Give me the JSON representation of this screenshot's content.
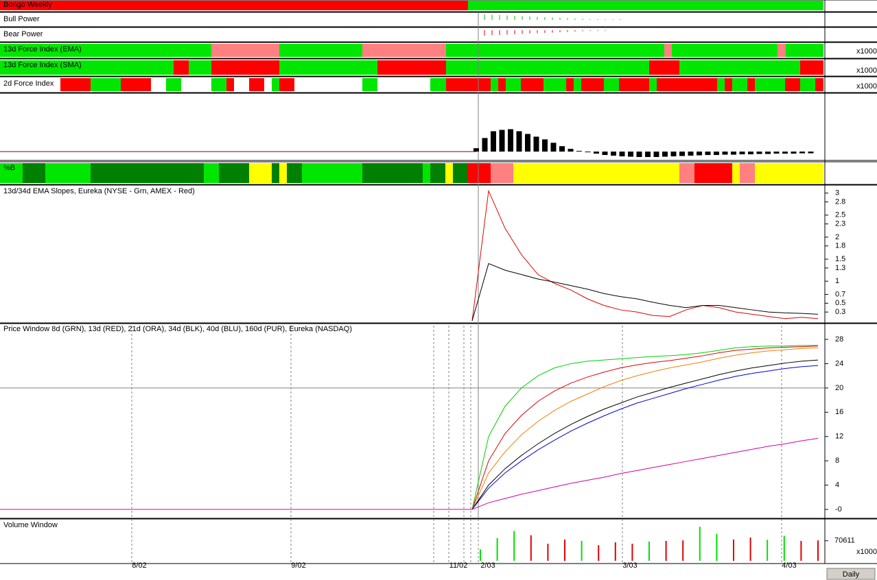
{
  "panels": {
    "bongo": "Bongo Weekly",
    "bull": "Bull Power",
    "bear": "Bear Power",
    "force_ema": "13d Force Index (EMA)",
    "force_sma": "13d Force Index (SMA)",
    "force_2d": "2d Force Index",
    "pctb": "%B"
  },
  "multiplier": "x1000",
  "dates": [
    "8/02",
    "9/02",
    "11/02",
    "2/03",
    "3/03",
    "4/03"
  ],
  "timeframe": "Daily",
  "chart_data": [
    {
      "type": "line",
      "title": "13d/34d EMA Slopes, Eureka (NYSE - Grn, AMEX - Red)",
      "ylim": [
        0.1,
        3.15
      ],
      "yticks": [
        0.3,
        0.5,
        0.7,
        1.0,
        1.3,
        1.5,
        1.8,
        2.0,
        2.3,
        2.5,
        2.8,
        3.0
      ],
      "series": [
        {
          "color": "#e00000",
          "values": [
            0.1,
            3.05,
            2.2,
            1.6,
            1.15,
            0.95,
            0.8,
            0.6,
            0.45,
            0.35,
            0.3,
            0.22,
            0.2,
            0.35,
            0.45,
            0.4,
            0.3,
            0.25,
            0.2,
            0.15,
            0.18,
            0.15
          ]
        },
        {
          "color": "#000000",
          "values": [
            0.1,
            1.4,
            1.25,
            1.15,
            1.05,
            0.98,
            0.9,
            0.82,
            0.72,
            0.65,
            0.6,
            0.52,
            0.45,
            0.4,
            0.45,
            0.45,
            0.4,
            0.35,
            0.3,
            0.28,
            0.27,
            0.25
          ]
        }
      ]
    },
    {
      "type": "line",
      "title": "Price Window 8d (GRN), 13d (RED), 21d (ORA), 34d (BLK), 40d (BLU), 160d (PUR), Eureka (NASDAQ)",
      "ylim": [
        -1.35,
        30.26
      ],
      "yticks": [
        {
          "value": 0,
          "label": "-0"
        },
        4,
        8,
        12,
        16,
        20,
        24,
        28
      ],
      "series": [
        {
          "color": "#00d000",
          "values": [
            0,
            12,
            17,
            20,
            22,
            23.3,
            24,
            24.4,
            24.6,
            24.8,
            25,
            25.2,
            25.3,
            25.5,
            25.8,
            26.2,
            26.6,
            26.8,
            26.9,
            26.9,
            27,
            27
          ]
        },
        {
          "color": "#e00000",
          "values": [
            0,
            8,
            12.5,
            15.5,
            17.8,
            19.5,
            20.8,
            21.8,
            22.6,
            23.3,
            23.8,
            24.2,
            24.5,
            24.9,
            25.3,
            25.8,
            26.2,
            26.4,
            26.6,
            26.7,
            26.8,
            26.9
          ]
        },
        {
          "color": "#f08000",
          "values": [
            0,
            6,
            9.5,
            12.3,
            14.5,
            16.3,
            17.8,
            19,
            20.2,
            21.2,
            22,
            22.7,
            23.3,
            23.8,
            24.3,
            24.9,
            25.4,
            25.8,
            26.1,
            26.3,
            26.5,
            26.6
          ]
        },
        {
          "color": "#000000",
          "values": [
            0,
            4,
            6.7,
            8.9,
            10.8,
            12.5,
            14,
            15.3,
            16.5,
            17.5,
            18.5,
            19.3,
            20.1,
            20.8,
            21.5,
            22.2,
            22.8,
            23.3,
            23.7,
            24.1,
            24.4,
            24.6
          ]
        },
        {
          "color": "#0000e0",
          "values": [
            0,
            3.5,
            6,
            8,
            9.8,
            11.4,
            12.9,
            14.2,
            15.4,
            16.5,
            17.5,
            18.3,
            19.1,
            19.9,
            20.6,
            21.3,
            21.9,
            22.4,
            22.8,
            23.2,
            23.5,
            23.7
          ]
        },
        {
          "color": "#d000a0",
          "values": [
            0,
            1.1,
            1.8,
            2.5,
            3.1,
            3.7,
            4.3,
            4.8,
            5.3,
            5.9,
            6.4,
            6.9,
            7.4,
            7.9,
            8.4,
            8.9,
            9.4,
            9.9,
            10.4,
            10.8,
            11.3,
            11.7
          ]
        }
      ]
    },
    {
      "type": "bar",
      "title": "Volume Window",
      "ylim": [
        0,
        140000
      ],
      "yticks": [
        70611
      ],
      "values": [
        40000,
        80000,
        105000,
        90000,
        60000,
        75000,
        70000,
        55000,
        65000,
        60000,
        68000,
        70000,
        72000,
        120000,
        95000,
        75000,
        82000,
        74000,
        88000,
        70000,
        72000
      ],
      "colors": [
        "#00e000",
        "#00e000",
        "#00e000",
        "#e00000",
        "#e00000",
        "#e00000",
        "#00e000",
        "#e00000",
        "#e00000",
        "#e00000",
        "#00e000",
        "#e00000",
        "#e00000",
        "#00e000",
        "#00e000",
        "#e00000",
        "#e00000",
        "#00e000",
        "#00e000",
        "#e00000",
        "#e00000"
      ]
    },
    {
      "type": "bar",
      "ylim": [
        -1.1,
        8.5
      ],
      "color": "#000000",
      "values": [
        0.5,
        2.0,
        3.0,
        3.2,
        3.3,
        3.0,
        2.6,
        2.2,
        1.8,
        1.3,
        0.8,
        0.4,
        0.1,
        -0.1,
        -0.3,
        -0.5,
        -0.6,
        -0.7,
        -0.75,
        -0.8,
        -0.8,
        -0.8,
        -0.75,
        -0.7,
        -0.65,
        -0.6,
        -0.55,
        -0.5,
        -0.5,
        -0.45,
        -0.45,
        -0.4,
        -0.4,
        -0.35,
        -0.35,
        -0.3,
        -0.3,
        -0.3,
        -0.25,
        -0.25
      ]
    }
  ]
}
